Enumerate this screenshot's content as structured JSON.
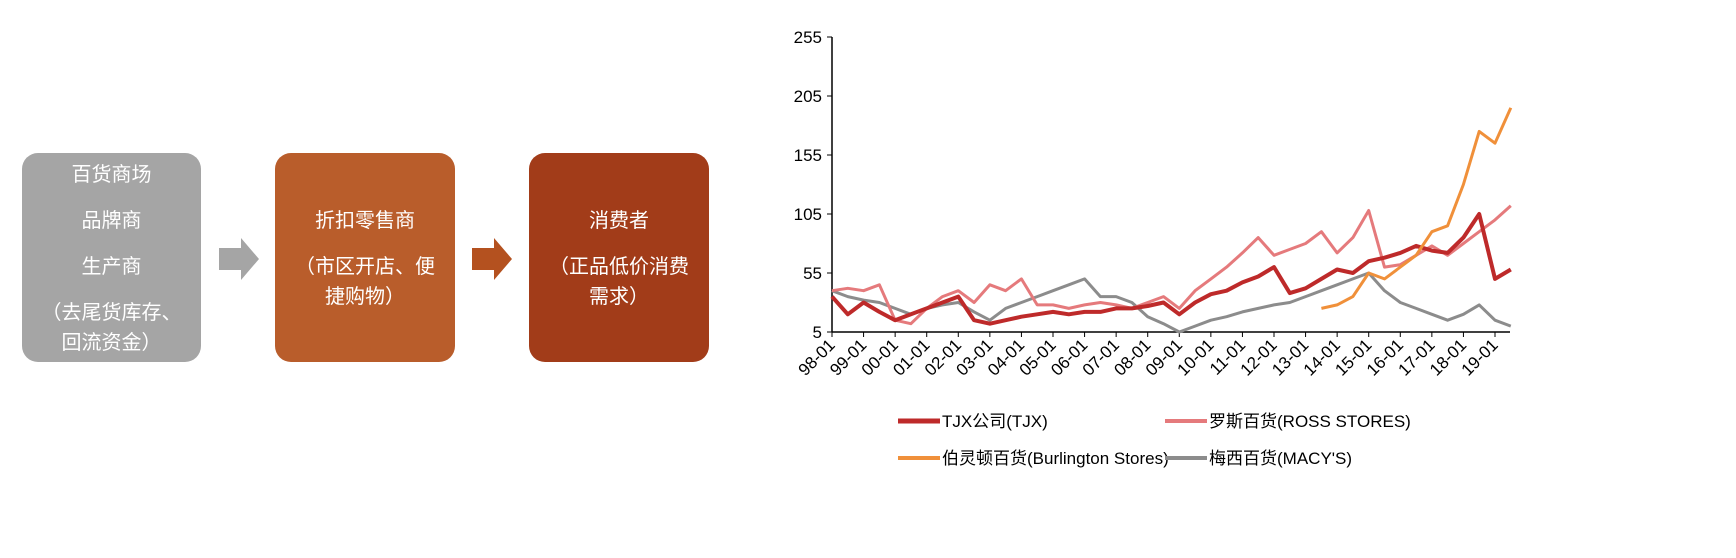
{
  "nodes": [
    {
      "lines": [
        "百货商场",
        "品牌商",
        "生产商",
        "（去尾货库存、回流资金）"
      ]
    },
    {
      "lines": [
        "折扣零售商",
        "（市区开店、便捷购物）"
      ]
    },
    {
      "lines": [
        "消费者",
        "（正品低价消费需求）"
      ]
    }
  ],
  "chart_data": {
    "type": "line",
    "categories": [
      "98-01",
      null,
      "99-01",
      null,
      "00-01",
      null,
      "01-01",
      null,
      "02-01",
      null,
      "03-01",
      null,
      "04-01",
      null,
      "05-01",
      null,
      "06-01",
      null,
      "07-01",
      null,
      "08-01",
      null,
      "09-01",
      null,
      "10-01",
      null,
      "11-01",
      null,
      "12-01",
      null,
      "13-01",
      null,
      "14-01",
      null,
      "15-01",
      null,
      "16-01",
      null,
      "17-01",
      null,
      "18-01",
      null,
      "19-01",
      null
    ],
    "ylim": [
      5,
      255
    ],
    "yticks": [
      5,
      55,
      105,
      155,
      205,
      255
    ],
    "series": [
      {
        "name": "TJX公司(TJX)",
        "color": "#be2a2a",
        "values": [
          35,
          20,
          30,
          22,
          15,
          20,
          25,
          30,
          35,
          15,
          12,
          15,
          18,
          20,
          22,
          20,
          22,
          22,
          25,
          25,
          27,
          30,
          20,
          30,
          37,
          40,
          47,
          52,
          60,
          38,
          42,
          50,
          58,
          55,
          65,
          68,
          72,
          78,
          74,
          72,
          85,
          105,
          50,
          58
        ]
      },
      {
        "name": "罗斯百货(ROSS STORES)",
        "color": "#e57a7c",
        "values": [
          40,
          42,
          40,
          45,
          15,
          12,
          25,
          35,
          40,
          30,
          45,
          40,
          50,
          28,
          28,
          25,
          28,
          30,
          28,
          25,
          30,
          35,
          25,
          40,
          50,
          60,
          72,
          85,
          70,
          75,
          80,
          90,
          72,
          85,
          108,
          60,
          62,
          70,
          78,
          70,
          80,
          90,
          100,
          112
        ]
      },
      {
        "name": "伯灵顿百货(Burlington Stores)",
        "color": "#f0903a",
        "values": [
          null,
          null,
          null,
          null,
          null,
          null,
          null,
          null,
          null,
          null,
          null,
          null,
          null,
          null,
          null,
          null,
          null,
          null,
          null,
          null,
          null,
          null,
          null,
          null,
          null,
          null,
          null,
          null,
          null,
          null,
          null,
          25,
          28,
          35,
          55,
          50,
          60,
          70,
          90,
          95,
          130,
          175,
          165,
          195
        ]
      },
      {
        "name": "梅西百货(MACY'S)",
        "color": "#8c8c8c",
        "values": [
          40,
          35,
          32,
          30,
          25,
          20,
          25,
          28,
          30,
          22,
          15,
          25,
          30,
          35,
          40,
          45,
          50,
          35,
          35,
          30,
          18,
          12,
          5,
          10,
          15,
          18,
          22,
          25,
          28,
          30,
          35,
          40,
          45,
          50,
          55,
          40,
          30,
          25,
          20,
          15,
          20,
          28,
          15,
          10
        ]
      }
    ]
  }
}
